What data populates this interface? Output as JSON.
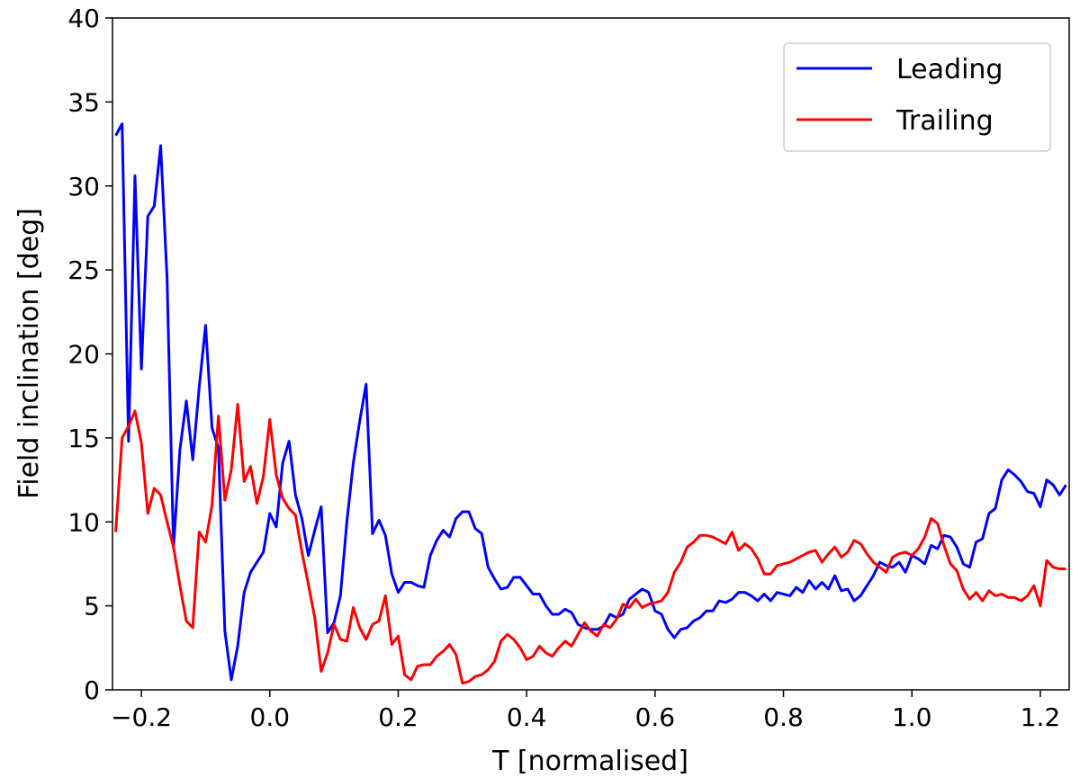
{
  "chart_data": {
    "type": "line",
    "xlabel": "T [normalised]",
    "ylabel": "Field inclination [deg]",
    "xlim": [
      -0.245,
      1.245
    ],
    "ylim": [
      0,
      40
    ],
    "xticks": [
      {
        "value": -0.2,
        "label": "−0.2"
      },
      {
        "value": 0,
        "label": "0.0"
      },
      0.2,
      0.4,
      0.6,
      0.8,
      {
        "value": 1,
        "label": "1.0"
      },
      1.2
    ],
    "yticks": [
      0,
      5,
      10,
      15,
      20,
      25,
      30,
      35,
      40
    ],
    "legend": "upper right",
    "x": [
      -0.24,
      -0.23,
      -0.22,
      -0.21,
      -0.2,
      -0.19,
      -0.18,
      -0.17,
      -0.16,
      -0.15,
      -0.14,
      -0.13,
      -0.12,
      -0.11,
      -0.1,
      -0.09,
      -0.08,
      -0.07,
      -0.06,
      -0.05,
      -0.04,
      -0.03,
      -0.02,
      -0.01,
      0,
      0.01,
      0.02,
      0.03,
      0.04,
      0.05,
      0.06,
      0.07,
      0.08,
      0.09,
      0.1,
      0.11,
      0.12,
      0.13,
      0.14,
      0.15,
      0.16,
      0.17,
      0.18,
      0.19,
      0.2,
      0.21,
      0.22,
      0.23,
      0.24,
      0.25,
      0.26,
      0.27,
      0.28,
      0.29,
      0.3,
      0.31,
      0.32,
      0.33,
      0.34,
      0.35,
      0.36,
      0.37,
      0.38,
      0.39,
      0.4,
      0.41,
      0.42,
      0.43,
      0.44,
      0.45,
      0.46,
      0.47,
      0.48,
      0.49,
      0.5,
      0.51,
      0.52,
      0.53,
      0.54,
      0.55,
      0.56,
      0.57,
      0.58,
      0.59,
      0.6,
      0.61,
      0.62,
      0.63,
      0.64,
      0.65,
      0.66,
      0.67,
      0.68,
      0.69,
      0.7,
      0.71,
      0.72,
      0.73,
      0.74,
      0.75,
      0.76,
      0.77,
      0.78,
      0.79,
      0.8,
      0.81,
      0.82,
      0.83,
      0.84,
      0.85,
      0.86,
      0.87,
      0.88,
      0.89,
      0.9,
      0.91,
      0.92,
      0.93,
      0.94,
      0.95,
      0.96,
      0.97,
      0.98,
      0.99,
      1,
      1.01,
      1.02,
      1.03,
      1.04,
      1.05,
      1.06,
      1.07,
      1.08,
      1.09,
      1.1,
      1.11,
      1.12,
      1.13,
      1.14,
      1.15,
      1.16,
      1.17,
      1.18,
      1.19,
      1.2,
      1.21,
      1.22,
      1.23,
      1.24
    ],
    "series": [
      {
        "name": "Leading",
        "color": "#0000ff",
        "values": [
          33,
          33.7,
          14.8,
          30.6,
          19.1,
          28.2,
          28.8,
          32.4,
          24.5,
          8.5,
          14.3,
          17.2,
          13.7,
          18,
          21.7,
          15.6,
          14.4,
          3.5,
          0.6,
          2.6,
          5.8,
          7,
          7.6,
          8.2,
          10.5,
          9.7,
          13.5,
          14.8,
          11.6,
          10.2,
          8,
          9.5,
          10.9,
          3.4,
          4,
          5.6,
          10,
          13.5,
          16,
          18.2,
          9.3,
          10.1,
          9.2,
          6.9,
          5.8,
          6.4,
          6.4,
          6.2,
          6.1,
          8,
          8.9,
          9.5,
          9.1,
          10.2,
          10.6,
          10.6,
          9.6,
          9.3,
          7.3,
          6.6,
          6,
          6.1,
          6.7,
          6.7,
          6.2,
          5.7,
          5.7,
          5,
          4.5,
          4.5,
          4.8,
          4.6,
          3.9,
          3.7,
          3.6,
          3.6,
          3.8,
          4.5,
          4.3,
          4.5,
          5.4,
          5.7,
          6,
          5.8,
          4.7,
          4.5,
          3.6,
          3.1,
          3.6,
          3.7,
          4.1,
          4.3,
          4.7,
          4.7,
          5.3,
          5.2,
          5.4,
          5.8,
          5.8,
          5.6,
          5.3,
          5.7,
          5.3,
          5.8,
          5.7,
          5.6,
          6.1,
          5.8,
          6.5,
          6,
          6.4,
          6,
          6.8,
          5.9,
          6,
          5.3,
          5.6,
          6.2,
          6.8,
          7.6,
          7.4,
          7.3,
          7.6,
          7,
          8,
          7.8,
          7.5,
          8.6,
          8.4,
          9.2,
          9.1,
          8.5,
          7.5,
          7.3,
          8.8,
          9,
          10.5,
          10.8,
          12.5,
          13.1,
          12.8,
          12.4,
          11.8,
          11.7,
          10.9,
          12.5,
          12.2,
          11.6,
          12.2
        ]
      },
      {
        "name": "Trailing",
        "color": "#ff0000",
        "values": [
          9.4,
          15,
          15.7,
          16.6,
          14.7,
          10.5,
          12,
          11.6,
          10,
          8.5,
          6.2,
          4.1,
          3.7,
          9.4,
          8.8,
          11,
          16.3,
          11.3,
          13.1,
          17,
          12.4,
          13.3,
          11.1,
          12.7,
          16.1,
          12.8,
          11.4,
          10.8,
          10.4,
          8.2,
          6.3,
          4.3,
          1.1,
          2.2,
          3.9,
          3,
          2.9,
          4.9,
          3.7,
          3,
          3.9,
          4.1,
          5.6,
          2.7,
          3.2,
          0.9,
          0.6,
          1.4,
          1.5,
          1.5,
          2,
          2.3,
          2.7,
          2.1,
          0.4,
          0.5,
          0.8,
          0.9,
          1.2,
          1.7,
          2.9,
          3.3,
          3,
          2.5,
          1.8,
          2,
          2.6,
          2.2,
          2,
          2.5,
          2.9,
          2.6,
          3.3,
          4,
          3.5,
          3.2,
          3.9,
          3.7,
          4.2,
          5.1,
          4.9,
          5.4,
          4.9,
          5.1,
          5.2,
          5.3,
          5.8,
          7,
          7.6,
          8.5,
          8.8,
          9.2,
          9.2,
          9.1,
          8.9,
          8.7,
          9.4,
          8.3,
          8.7,
          8.4,
          7.8,
          6.9,
          6.9,
          7.4,
          7.5,
          7.6,
          7.8,
          8,
          8.2,
          8.3,
          7.6,
          8.1,
          8.5,
          7.9,
          8.2,
          8.9,
          8.7,
          8.1,
          7.6,
          7.3,
          7,
          7.9,
          8.1,
          8.2,
          8,
          8.4,
          9.1,
          10.2,
          9.9,
          8.6,
          7.5,
          7.1,
          6,
          5.4,
          5.8,
          5.3,
          5.9,
          5.6,
          5.7,
          5.5,
          5.5,
          5.3,
          5.6,
          6.2,
          5,
          7.7,
          7.3,
          7.2,
          7.2
        ]
      }
    ]
  }
}
